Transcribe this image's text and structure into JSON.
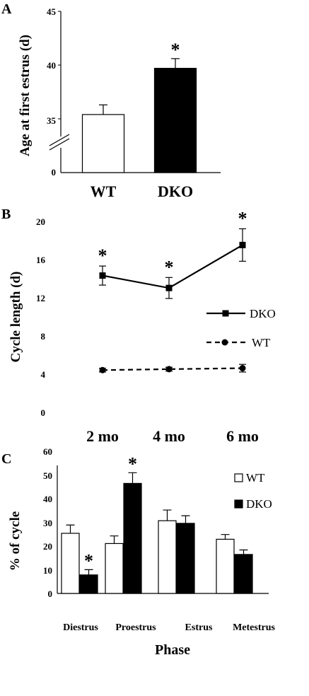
{
  "chart_data": [
    {
      "panel_label": "A",
      "type": "bar",
      "ylabel": "Age at first estrus (d)",
      "ylim": [
        30,
        45
      ],
      "axis_break": true,
      "yticks": [
        35,
        40,
        45
      ],
      "baseline_tick_label": "0",
      "categories": [
        "WT",
        "DKO"
      ],
      "values": [
        35.4,
        39.7
      ],
      "errors": [
        0.9,
        0.9
      ],
      "significance": [
        false,
        true
      ],
      "significance_marker": "*",
      "bar_colors": [
        "#ffffff",
        "#000000"
      ]
    },
    {
      "panel_label": "B",
      "type": "line",
      "ylabel": "Cycle length (d)",
      "ylim": [
        0,
        20
      ],
      "yticks": [
        0,
        4,
        8,
        12,
        16,
        20
      ],
      "categories": [
        "2 mo",
        "4 mo",
        "6 mo"
      ],
      "series": [
        {
          "name": "DKO",
          "values": [
            14.4,
            13.1,
            17.6
          ],
          "errors": [
            1.0,
            1.1,
            1.7
          ],
          "significance": [
            true,
            true,
            true
          ],
          "marker": "square",
          "line": "solid"
        },
        {
          "name": "WT",
          "values": [
            4.5,
            4.6,
            4.7
          ],
          "errors": [
            0.2,
            0.2,
            0.4
          ],
          "significance": [
            false,
            false,
            false
          ],
          "marker": "circle",
          "line": "dashed"
        }
      ],
      "significance_marker": "*",
      "legend_position": "right"
    },
    {
      "panel_label": "C",
      "type": "bar",
      "xlabel": "Phase",
      "ylabel": "% of cycle",
      "ylim": [
        0,
        60
      ],
      "yticks": [
        0,
        10,
        20,
        30,
        40,
        50,
        60
      ],
      "categories": [
        "Diestrus",
        "Proestrus",
        "Estrus",
        "Metestrus"
      ],
      "series": [
        {
          "name": "WT",
          "values": [
            25.3,
            21.0,
            30.6,
            22.8
          ],
          "errors": [
            3.5,
            3.2,
            4.5,
            2.0
          ],
          "significance": [
            false,
            false,
            false,
            false
          ],
          "color": "#ffffff"
        },
        {
          "name": "DKO",
          "values": [
            7.8,
            46.3,
            29.5,
            16.4
          ],
          "errors": [
            2.2,
            4.5,
            3.2,
            1.9
          ],
          "significance": [
            true,
            true,
            false,
            false
          ],
          "color": "#000000"
        }
      ],
      "significance_marker": "*",
      "legend_position": "top-right"
    }
  ]
}
